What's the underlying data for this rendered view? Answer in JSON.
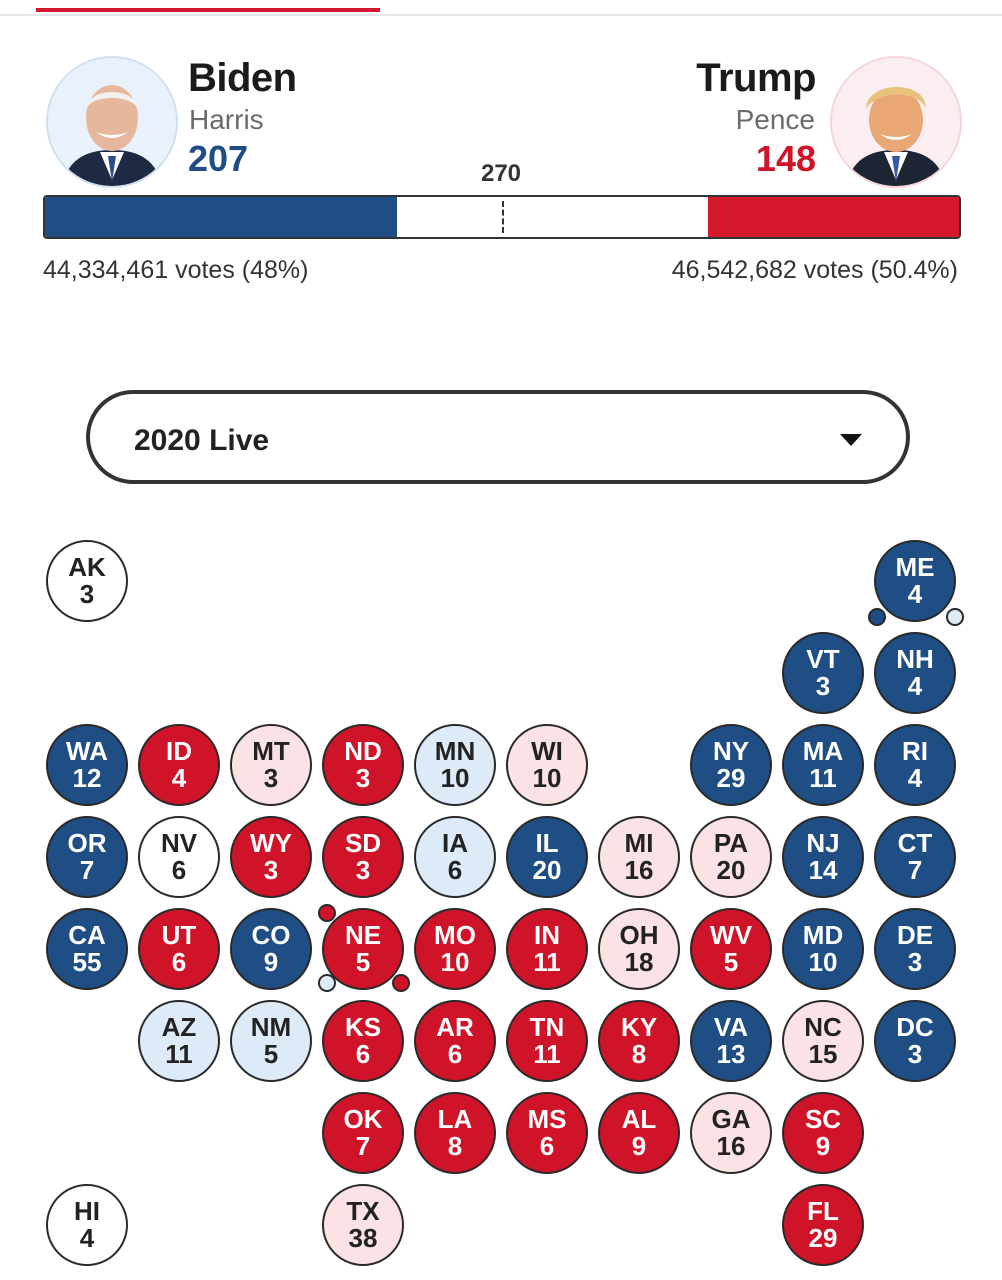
{
  "candidates": {
    "dem": {
      "name": "Biden",
      "vp": "Harris",
      "ev": "207",
      "votes": "44,334,461 votes (48%)",
      "ev_fraction": 0.385,
      "color": "#1f4e84"
    },
    "rep": {
      "name": "Trump",
      "vp": "Pence",
      "ev": "148",
      "votes": "46,542,682 votes (50.4%)",
      "ev_fraction": 0.275,
      "color": "#d3192b"
    }
  },
  "threshold": "270",
  "selector": {
    "value": "2020 Live"
  },
  "colors": {
    "D": "#1f4e84",
    "R": "#cf1328",
    "LD": "#ddebf8",
    "LR": "#fbe2e4",
    "T": "#ffffff"
  },
  "states": [
    {
      "abbr": "AK",
      "ev": "3",
      "status": "T",
      "row": 0,
      "col": 0
    },
    {
      "abbr": "ME",
      "ev": "4",
      "status": "D",
      "row": 0,
      "col": 9,
      "district_dots": [
        "D",
        "LD"
      ]
    },
    {
      "abbr": "VT",
      "ev": "3",
      "status": "D",
      "row": 1,
      "col": 8
    },
    {
      "abbr": "NH",
      "ev": "4",
      "status": "D",
      "row": 1,
      "col": 9
    },
    {
      "abbr": "WA",
      "ev": "12",
      "status": "D",
      "row": 2,
      "col": 0
    },
    {
      "abbr": "ID",
      "ev": "4",
      "status": "R",
      "row": 2,
      "col": 1
    },
    {
      "abbr": "MT",
      "ev": "3",
      "status": "LR",
      "row": 2,
      "col": 2
    },
    {
      "abbr": "ND",
      "ev": "3",
      "status": "R",
      "row": 2,
      "col": 3
    },
    {
      "abbr": "MN",
      "ev": "10",
      "status": "LD",
      "row": 2,
      "col": 4
    },
    {
      "abbr": "WI",
      "ev": "10",
      "status": "LR",
      "row": 2,
      "col": 5
    },
    {
      "abbr": "NY",
      "ev": "29",
      "status": "D",
      "row": 2,
      "col": 7
    },
    {
      "abbr": "MA",
      "ev": "11",
      "status": "D",
      "row": 2,
      "col": 8
    },
    {
      "abbr": "RI",
      "ev": "4",
      "status": "D",
      "row": 2,
      "col": 9
    },
    {
      "abbr": "OR",
      "ev": "7",
      "status": "D",
      "row": 3,
      "col": 0
    },
    {
      "abbr": "NV",
      "ev": "6",
      "status": "T",
      "row": 3,
      "col": 1
    },
    {
      "abbr": "WY",
      "ev": "3",
      "status": "R",
      "row": 3,
      "col": 2
    },
    {
      "abbr": "SD",
      "ev": "3",
      "status": "R",
      "row": 3,
      "col": 3
    },
    {
      "abbr": "IA",
      "ev": "6",
      "status": "LD",
      "row": 3,
      "col": 4
    },
    {
      "abbr": "IL",
      "ev": "20",
      "status": "D",
      "row": 3,
      "col": 5
    },
    {
      "abbr": "MI",
      "ev": "16",
      "status": "LR",
      "row": 3,
      "col": 6
    },
    {
      "abbr": "PA",
      "ev": "20",
      "status": "LR",
      "row": 3,
      "col": 7
    },
    {
      "abbr": "NJ",
      "ev": "14",
      "status": "D",
      "row": 3,
      "col": 8
    },
    {
      "abbr": "CT",
      "ev": "7",
      "status": "D",
      "row": 3,
      "col": 9
    },
    {
      "abbr": "CA",
      "ev": "55",
      "status": "D",
      "row": 4,
      "col": 0
    },
    {
      "abbr": "UT",
      "ev": "6",
      "status": "R",
      "row": 4,
      "col": 1
    },
    {
      "abbr": "CO",
      "ev": "9",
      "status": "D",
      "row": 4,
      "col": 2
    },
    {
      "abbr": "NE",
      "ev": "5",
      "status": "R",
      "row": 4,
      "col": 3,
      "district_dots": [
        "R",
        "LD",
        "R"
      ]
    },
    {
      "abbr": "MO",
      "ev": "10",
      "status": "R",
      "row": 4,
      "col": 4
    },
    {
      "abbr": "IN",
      "ev": "11",
      "status": "R",
      "row": 4,
      "col": 5
    },
    {
      "abbr": "OH",
      "ev": "18",
      "status": "LR",
      "row": 4,
      "col": 6
    },
    {
      "abbr": "WV",
      "ev": "5",
      "status": "R",
      "row": 4,
      "col": 7
    },
    {
      "abbr": "MD",
      "ev": "10",
      "status": "D",
      "row": 4,
      "col": 8
    },
    {
      "abbr": "DE",
      "ev": "3",
      "status": "D",
      "row": 4,
      "col": 9
    },
    {
      "abbr": "AZ",
      "ev": "11",
      "status": "LD",
      "row": 5,
      "col": 1
    },
    {
      "abbr": "NM",
      "ev": "5",
      "status": "LD",
      "row": 5,
      "col": 2
    },
    {
      "abbr": "KS",
      "ev": "6",
      "status": "R",
      "row": 5,
      "col": 3
    },
    {
      "abbr": "AR",
      "ev": "6",
      "status": "R",
      "row": 5,
      "col": 4
    },
    {
      "abbr": "TN",
      "ev": "11",
      "status": "R",
      "row": 5,
      "col": 5
    },
    {
      "abbr": "KY",
      "ev": "8",
      "status": "R",
      "row": 5,
      "col": 6
    },
    {
      "abbr": "VA",
      "ev": "13",
      "status": "D",
      "row": 5,
      "col": 7
    },
    {
      "abbr": "NC",
      "ev": "15",
      "status": "LR",
      "row": 5,
      "col": 8
    },
    {
      "abbr": "DC",
      "ev": "3",
      "status": "D",
      "row": 5,
      "col": 9
    },
    {
      "abbr": "OK",
      "ev": "7",
      "status": "R",
      "row": 6,
      "col": 3
    },
    {
      "abbr": "LA",
      "ev": "8",
      "status": "R",
      "row": 6,
      "col": 4
    },
    {
      "abbr": "MS",
      "ev": "6",
      "status": "R",
      "row": 6,
      "col": 5
    },
    {
      "abbr": "AL",
      "ev": "9",
      "status": "R",
      "row": 6,
      "col": 6
    },
    {
      "abbr": "GA",
      "ev": "16",
      "status": "LR",
      "row": 6,
      "col": 7
    },
    {
      "abbr": "SC",
      "ev": "9",
      "status": "R",
      "row": 6,
      "col": 8
    },
    {
      "abbr": "HI",
      "ev": "4",
      "status": "T",
      "row": 7,
      "col": 0
    },
    {
      "abbr": "TX",
      "ev": "38",
      "status": "LR",
      "row": 7,
      "col": 3
    },
    {
      "abbr": "FL",
      "ev": "29",
      "status": "R",
      "row": 7,
      "col": 8
    }
  ]
}
